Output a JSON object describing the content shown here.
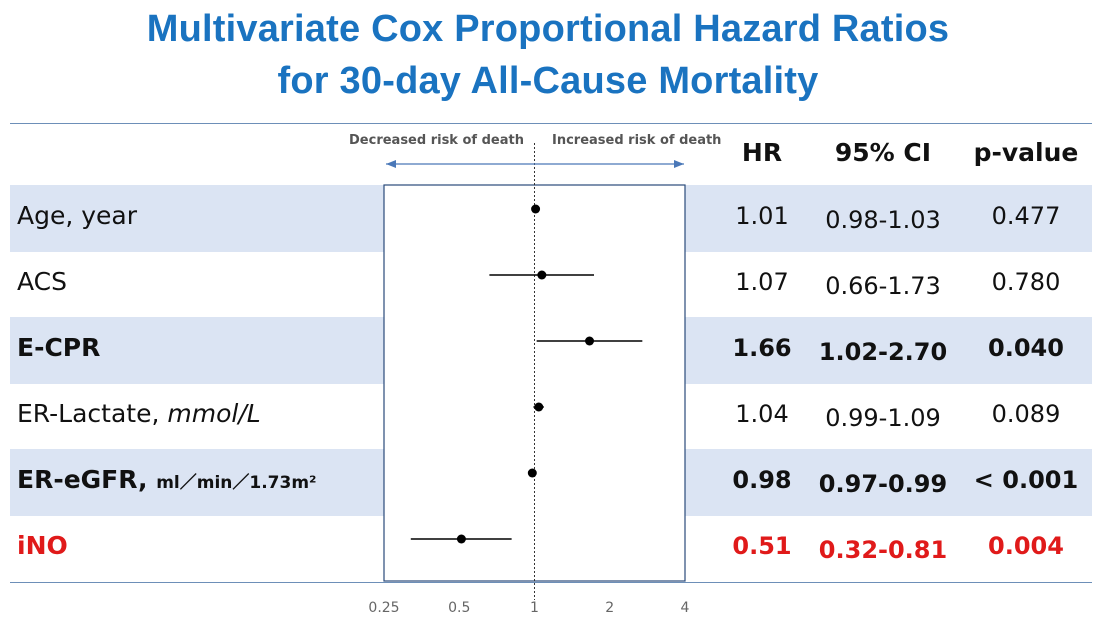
{
  "title": {
    "line1": "Multivariate Cox Proportional Hazard Ratios",
    "line2": "for 30-day All-Cause Mortality"
  },
  "direction_labels": {
    "left": "Decreased risk of death",
    "right": "Increased risk of death"
  },
  "headers": {
    "hr": "HR",
    "ci": "95% CI",
    "p": "p-value"
  },
  "rows": [
    {
      "label": "Age, year",
      "unit": "",
      "hr": "1.01",
      "ci": "0.98-1.03",
      "p": "0.477",
      "style": "normal",
      "band": true
    },
    {
      "label": "ACS",
      "unit": "",
      "hr": "1.07",
      "ci": "0.66-1.73",
      "p": "0.780",
      "style": "normal",
      "band": false
    },
    {
      "label": "E-CPR",
      "unit": "",
      "hr": "1.66",
      "ci": "1.02-2.70",
      "p": "0.040",
      "style": "bold",
      "band": true
    },
    {
      "label": "ER-Lactate,",
      "unit": "mmol/L",
      "hr": "1.04",
      "ci": "0.99-1.09",
      "p": "0.089",
      "style": "normal",
      "band": false
    },
    {
      "label": "ER-eGFR,",
      "unit": "ml／min／1.73m²",
      "hr": "0.98",
      "ci": "0.97-0.99",
      "p": "< 0.001",
      "style": "bold",
      "band": true
    },
    {
      "label": "iNO",
      "unit": "",
      "hr": "0.51",
      "ci": "0.32-0.81",
      "p": "0.004",
      "style": "red",
      "band": false
    }
  ],
  "colors": {
    "title": "#1a73c0",
    "band": "#dbe4f3",
    "highlight": "#e01a1a",
    "arrow": "#4a78b8"
  },
  "chart_data": {
    "type": "scatter",
    "subtype": "forest-plot",
    "title": "Multivariate Cox Proportional Hazard Ratios for 30-day All-Cause Mortality",
    "xscale": "log2",
    "xlim": [
      0.25,
      4
    ],
    "xticks": [
      0.25,
      0.5,
      1,
      2,
      4
    ],
    "xtick_labels": [
      "0.25",
      "0.5",
      "1",
      "2",
      "4"
    ],
    "reference_line": 1,
    "series": [
      {
        "name": "Age, year",
        "hr": 1.01,
        "lower": 0.98,
        "upper": 1.03
      },
      {
        "name": "ACS",
        "hr": 1.07,
        "lower": 0.66,
        "upper": 1.73
      },
      {
        "name": "E-CPR",
        "hr": 1.66,
        "lower": 1.02,
        "upper": 2.7
      },
      {
        "name": "ER-Lactate, mmol/L",
        "hr": 1.04,
        "lower": 0.99,
        "upper": 1.09
      },
      {
        "name": "ER-eGFR, ml/min/1.73m2",
        "hr": 0.98,
        "lower": 0.97,
        "upper": 0.99
      },
      {
        "name": "iNO",
        "hr": 0.51,
        "lower": 0.32,
        "upper": 0.81
      }
    ]
  }
}
